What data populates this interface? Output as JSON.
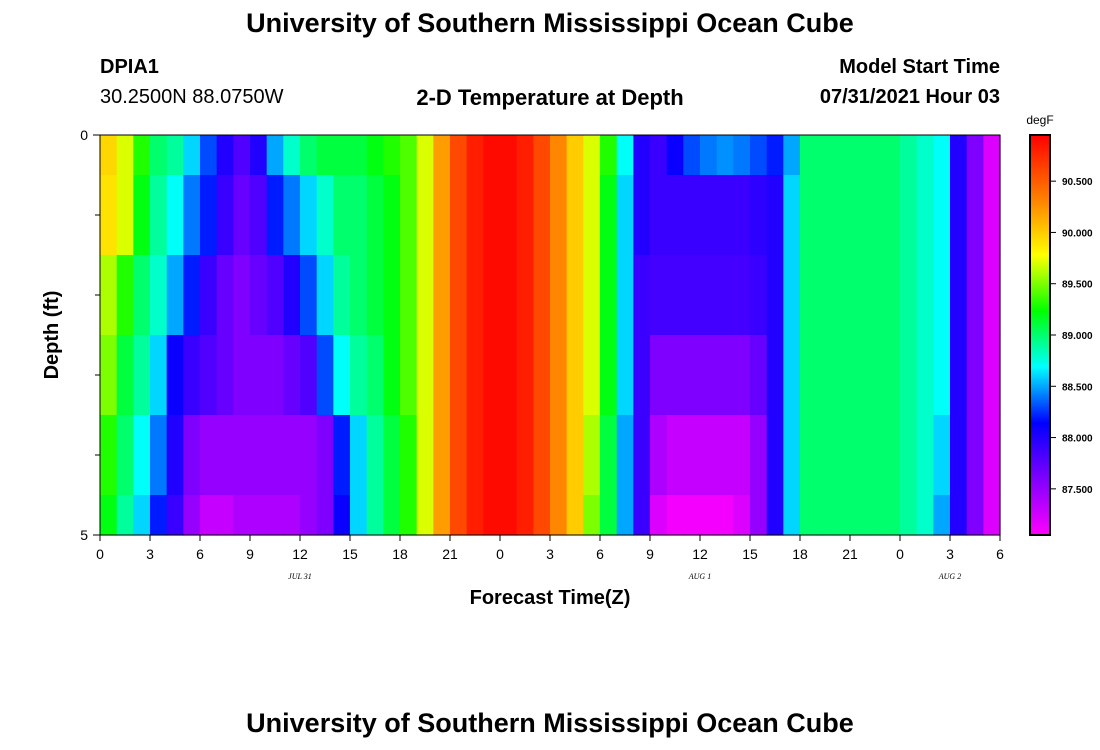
{
  "page": {
    "title_top": "University of Southern Mississippi Ocean Cube",
    "title_bottom": "University of Southern Mississippi Ocean Cube",
    "station_id": "DPIA1",
    "coords": "30.2500N  88.0750W",
    "subtitle": "2-D Temperature at Depth",
    "model_start_label": "Model Start Time",
    "model_start_value": "07/31/2021 Hour 03"
  },
  "chart_data": {
    "type": "heatmap",
    "title": "2-D Temperature at Depth",
    "xlabel": "Forecast Time(Z)",
    "ylabel": "Depth (ft)",
    "colorbar_unit": "degF",
    "colorbar_ticks": [
      "87.500",
      "88.000",
      "88.500",
      "89.000",
      "89.500",
      "90.000",
      "90.500"
    ],
    "colorbar_range": [
      87.05,
      90.95
    ],
    "x_range_hours": [
      0,
      54
    ],
    "x_ticks": [
      "0",
      "3",
      "6",
      "9",
      "12",
      "15",
      "18",
      "21",
      "0",
      "3",
      "6",
      "9",
      "12",
      "15",
      "18",
      "21",
      "0",
      "3",
      "6"
    ],
    "date_labels": [
      {
        "text": "JUL 31",
        "hour": 12
      },
      {
        "text": "AUG 1",
        "hour": 36
      },
      {
        "text": "AUG 2",
        "hour": 51
      }
    ],
    "y_range": [
      0,
      5
    ],
    "y_tick_labels": [
      {
        "value": 0,
        "text": "0"
      },
      {
        "value": 5,
        "text": "5"
      }
    ],
    "y_minor_ticks": [
      1,
      2,
      3,
      4
    ],
    "time_hours": [
      0,
      1,
      2,
      3,
      4,
      5,
      6,
      7,
      8,
      9,
      10,
      11,
      12,
      13,
      14,
      15,
      16,
      17,
      18,
      19,
      20,
      21,
      22,
      23,
      24,
      25,
      26,
      27,
      28,
      29,
      30,
      31,
      32,
      33,
      34,
      35,
      36,
      37,
      38,
      39,
      40,
      41,
      42,
      43,
      44,
      45,
      46,
      47,
      48,
      49,
      50,
      51,
      52,
      53
    ],
    "depth_bins_ft": [
      "0-0.5",
      "0.5-1.5",
      "1.5-2.5",
      "2.5-3.5",
      "3.5-4.5",
      "4.5-5"
    ],
    "temperature_degF": [
      [
        89.95,
        89.7,
        89.3,
        89.0,
        88.9,
        88.6,
        88.3,
        88.0,
        87.8,
        88.0,
        88.5,
        88.8,
        89.0,
        89.1,
        89.1,
        89.1,
        89.2,
        89.3,
        89.4,
        89.7,
        90.2,
        90.6,
        90.8,
        90.9,
        90.9,
        90.8,
        90.6,
        90.3,
        90.0,
        89.7,
        89.3,
        88.7,
        88.0,
        87.9,
        88.1,
        88.3,
        88.4,
        88.45,
        88.4,
        88.3,
        88.2,
        88.5,
        89.0,
        89.0,
        89.0,
        89.0,
        89.0,
        89.0,
        88.9,
        88.8,
        88.7,
        88.0,
        87.6,
        87.2
      ],
      [
        89.9,
        89.7,
        89.2,
        88.9,
        88.7,
        88.4,
        88.2,
        87.9,
        87.7,
        87.8,
        88.2,
        88.4,
        88.6,
        88.8,
        89.0,
        89.0,
        89.1,
        89.2,
        89.4,
        89.7,
        90.2,
        90.6,
        90.8,
        90.9,
        90.9,
        90.8,
        90.6,
        90.3,
        90.0,
        89.7,
        89.2,
        88.6,
        88.0,
        87.9,
        87.9,
        87.9,
        87.9,
        87.9,
        87.9,
        87.95,
        88.0,
        88.6,
        89.0,
        89.0,
        89.0,
        89.0,
        89.0,
        89.0,
        88.9,
        88.8,
        88.7,
        88.0,
        87.6,
        87.2
      ],
      [
        89.6,
        89.3,
        89.0,
        88.8,
        88.5,
        88.2,
        87.9,
        87.7,
        87.6,
        87.7,
        87.8,
        88.0,
        88.3,
        88.6,
        88.9,
        89.0,
        89.1,
        89.2,
        89.4,
        89.7,
        90.2,
        90.6,
        90.8,
        90.9,
        90.9,
        90.8,
        90.6,
        90.3,
        90.0,
        89.7,
        89.2,
        88.6,
        87.9,
        87.85,
        87.85,
        87.85,
        87.85,
        87.85,
        87.85,
        87.9,
        88.0,
        88.6,
        89.0,
        89.0,
        89.0,
        89.0,
        89.0,
        89.0,
        88.9,
        88.8,
        88.7,
        88.0,
        87.6,
        87.2
      ],
      [
        89.5,
        89.1,
        88.9,
        88.6,
        88.1,
        87.9,
        87.8,
        87.7,
        87.6,
        87.6,
        87.6,
        87.7,
        87.8,
        88.3,
        88.7,
        88.9,
        89.0,
        89.2,
        89.4,
        89.7,
        90.2,
        90.6,
        90.8,
        90.9,
        90.9,
        90.8,
        90.6,
        90.3,
        90.0,
        89.7,
        89.2,
        88.6,
        87.9,
        87.6,
        87.6,
        87.6,
        87.6,
        87.6,
        87.6,
        87.7,
        88.0,
        88.6,
        89.0,
        89.0,
        89.0,
        89.0,
        89.0,
        89.0,
        88.9,
        88.8,
        88.7,
        88.0,
        87.6,
        87.2
      ],
      [
        89.3,
        89.0,
        88.7,
        88.4,
        88.0,
        87.6,
        87.5,
        87.5,
        87.5,
        87.5,
        87.5,
        87.5,
        87.5,
        87.6,
        88.2,
        88.6,
        88.9,
        89.1,
        89.3,
        89.7,
        90.2,
        90.6,
        90.8,
        90.9,
        90.9,
        90.8,
        90.6,
        90.3,
        90.0,
        89.6,
        89.1,
        88.5,
        87.9,
        87.4,
        87.3,
        87.3,
        87.3,
        87.3,
        87.3,
        87.5,
        88.0,
        88.6,
        89.0,
        89.0,
        89.0,
        89.0,
        89.0,
        89.0,
        88.9,
        88.8,
        88.6,
        88.0,
        87.6,
        87.2
      ],
      [
        89.2,
        88.9,
        88.6,
        88.2,
        87.9,
        87.5,
        87.3,
        87.3,
        87.4,
        87.4,
        87.4,
        87.4,
        87.5,
        87.6,
        88.1,
        88.6,
        88.9,
        89.1,
        89.3,
        89.7,
        90.2,
        90.6,
        90.8,
        90.9,
        90.9,
        90.8,
        90.6,
        90.3,
        90.0,
        89.5,
        89.1,
        88.5,
        87.9,
        87.2,
        87.1,
        87.1,
        87.1,
        87.1,
        87.2,
        87.5,
        88.0,
        88.6,
        89.0,
        89.0,
        89.0,
        89.0,
        89.0,
        89.0,
        88.9,
        88.8,
        88.5,
        88.0,
        87.6,
        87.2
      ]
    ]
  }
}
